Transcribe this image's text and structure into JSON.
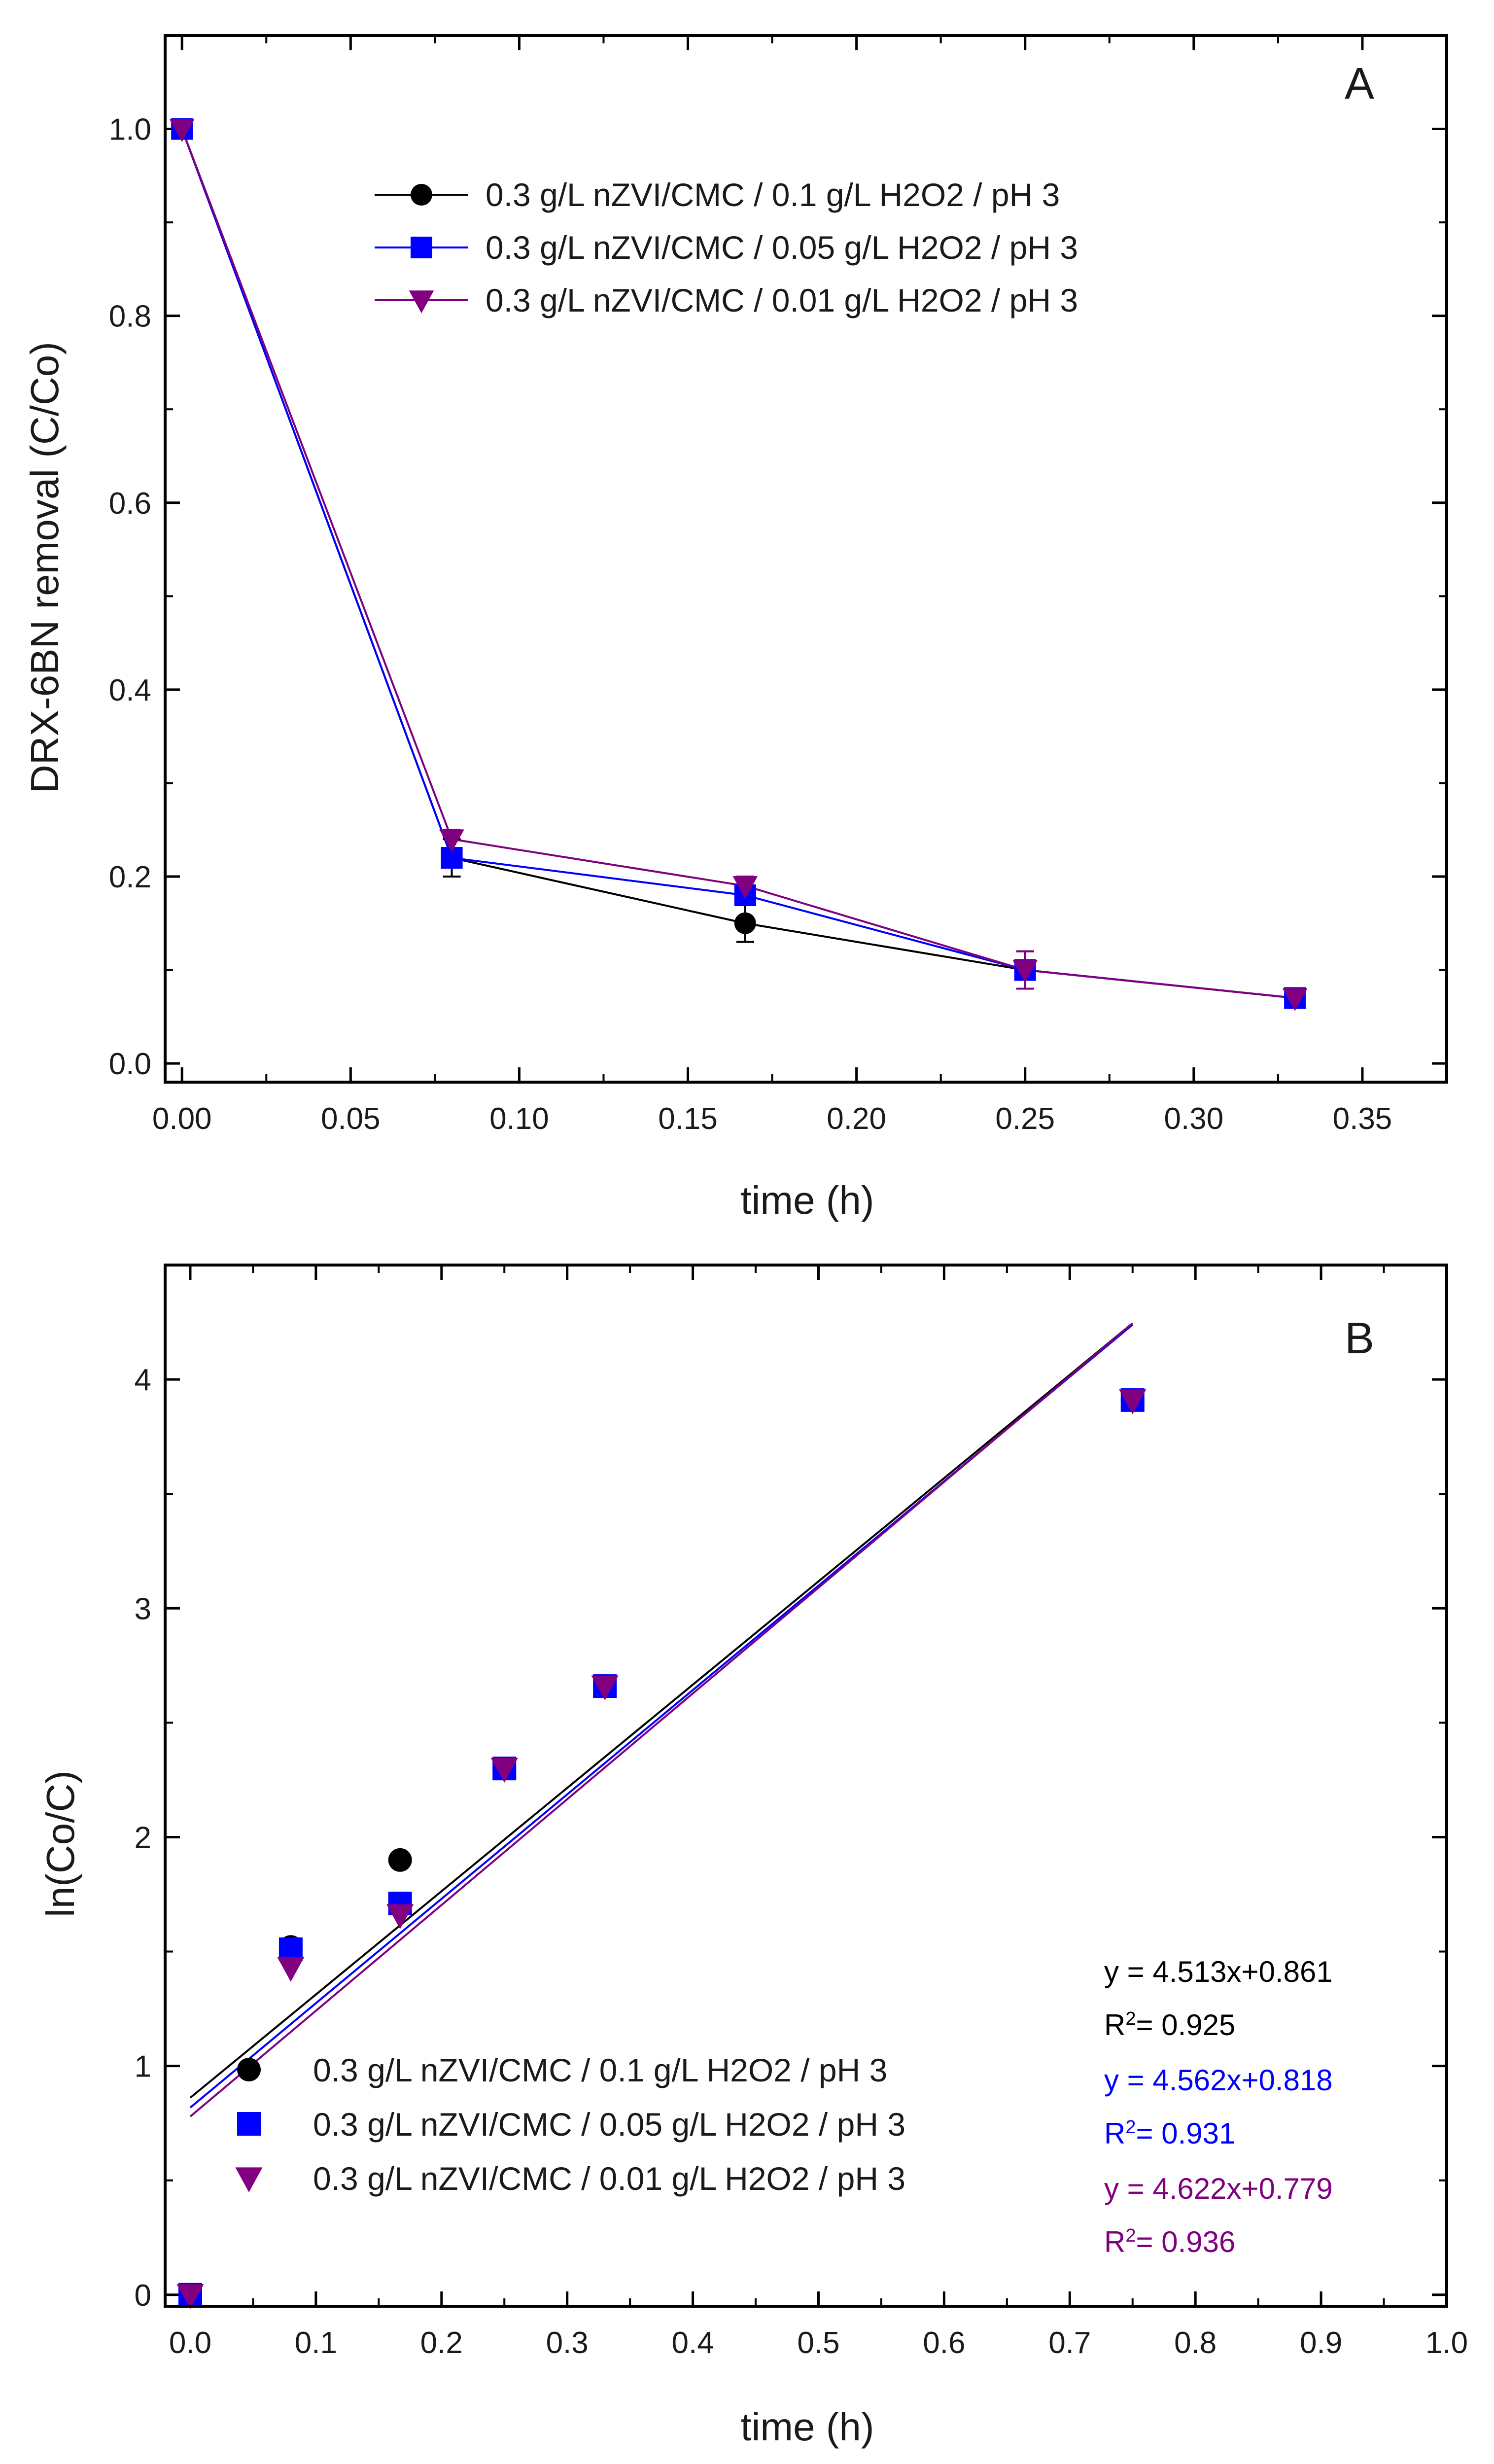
{
  "colors": {
    "s1": "#000000",
    "s2": "#0000ff",
    "s3": "#800080"
  },
  "chart_data": [
    {
      "panel": "A",
      "type": "line",
      "title": "",
      "xlabel": "time (h)",
      "ylabel": "DRX-6BN removal (C/Co)",
      "xlim": [
        -0.005,
        0.375
      ],
      "ylim": [
        -0.02,
        1.1
      ],
      "xticks": [
        0.0,
        0.05,
        0.1,
        0.15,
        0.2,
        0.25,
        0.3,
        0.35
      ],
      "xtick_labels": [
        "0.00",
        "0.05",
        "0.10",
        "0.15",
        "0.20",
        "0.25",
        "0.30",
        "0.35"
      ],
      "yticks": [
        0.0,
        0.2,
        0.4,
        0.6,
        0.8,
        1.0
      ],
      "ytick_labels": [
        "0.0",
        "0.2",
        "0.4",
        "0.6",
        "0.8",
        "1.0"
      ],
      "legend_position": "top-right",
      "series": [
        {
          "name": "0.3 g/L nZVI/CMC / 0.1 g/L H2O2 / pH 3",
          "marker": "circle",
          "color": "#000000",
          "x": [
            0.0,
            0.08,
            0.167,
            0.25,
            0.33
          ],
          "y": [
            1.0,
            0.22,
            0.15,
            0.1,
            0.07
          ],
          "err": [
            0.005,
            0.02,
            0.02,
            0.02,
            0.01
          ]
        },
        {
          "name": "0.3 g/L nZVI/CMC / 0.05 g/L H2O2 / pH 3",
          "marker": "square",
          "color": "#0000ff",
          "x": [
            0.0,
            0.08,
            0.167,
            0.25,
            0.33
          ],
          "y": [
            1.0,
            0.22,
            0.18,
            0.1,
            0.07
          ],
          "err": [
            0.005,
            0.01,
            0.01,
            0.01,
            0.01
          ]
        },
        {
          "name": "0.3 g/L nZVI/CMC / 0.01 g/L H2O2 / pH 3",
          "marker": "triangle-down",
          "color": "#800080",
          "x": [
            0.0,
            0.08,
            0.167,
            0.25,
            0.33
          ],
          "y": [
            1.0,
            0.24,
            0.19,
            0.1,
            0.07
          ],
          "err": [
            0.005,
            0.01,
            0.01,
            0.02,
            0.01
          ]
        }
      ]
    },
    {
      "panel": "B",
      "type": "scatter",
      "title": "",
      "xlabel": "time (h)",
      "ylabel": "ln(Co/C)",
      "xlim": [
        -0.02,
        1.0
      ],
      "ylim": [
        -0.05,
        4.5
      ],
      "xticks": [
        0.0,
        0.1,
        0.2,
        0.3,
        0.4,
        0.5,
        0.6,
        0.7,
        0.8,
        0.9,
        1.0
      ],
      "xtick_labels": [
        "0.0",
        "0.1",
        "0.2",
        "0.3",
        "0.4",
        "0.5",
        "0.6",
        "0.7",
        "0.8",
        "0.9",
        "1.0"
      ],
      "yticks": [
        0,
        1,
        2,
        3,
        4
      ],
      "ytick_labels": [
        "0",
        "1",
        "2",
        "3",
        "4"
      ],
      "legend_position": "bottom-left",
      "series": [
        {
          "name": "0.3 g/L nZVI/CMC / 0.1 g/L H2O2 / pH 3",
          "marker": "circle",
          "color": "#000000",
          "x": [
            0.0,
            0.08,
            0.167,
            0.25,
            0.33,
            0.75
          ],
          "y": [
            0.0,
            1.52,
            1.9,
            2.3,
            2.66,
            3.91
          ],
          "fit": {
            "slope": 4.513,
            "intercept": 0.861,
            "x_range": [
              0.0,
              0.75
            ],
            "equation": "y = 4.513x+0.861",
            "r2_label": "= 0.925"
          }
        },
        {
          "name": "0.3 g/L nZVI/CMC / 0.05 g/L H2O2 / pH 3",
          "marker": "square",
          "color": "#0000ff",
          "x": [
            0.0,
            0.08,
            0.167,
            0.25,
            0.33,
            0.75
          ],
          "y": [
            0.0,
            1.51,
            1.71,
            2.3,
            2.66,
            3.91
          ],
          "fit": {
            "slope": 4.562,
            "intercept": 0.818,
            "x_range": [
              0.0,
              0.75
            ],
            "equation": "y = 4.562x+0.818",
            "r2_label": "= 0.931"
          }
        },
        {
          "name": "0.3 g/L nZVI/CMC / 0.01 g/L H2O2 / pH 3",
          "marker": "triangle-down",
          "color": "#800080",
          "x": [
            0.0,
            0.08,
            0.167,
            0.25,
            0.33,
            0.75
          ],
          "y": [
            0.0,
            1.43,
            1.66,
            2.3,
            2.66,
            3.91
          ],
          "fit": {
            "slope": 4.622,
            "intercept": 0.779,
            "x_range": [
              0.0,
              0.75
            ],
            "equation": "y = 4.622x+0.779",
            "r2_label": "= 0.936"
          }
        }
      ]
    }
  ]
}
